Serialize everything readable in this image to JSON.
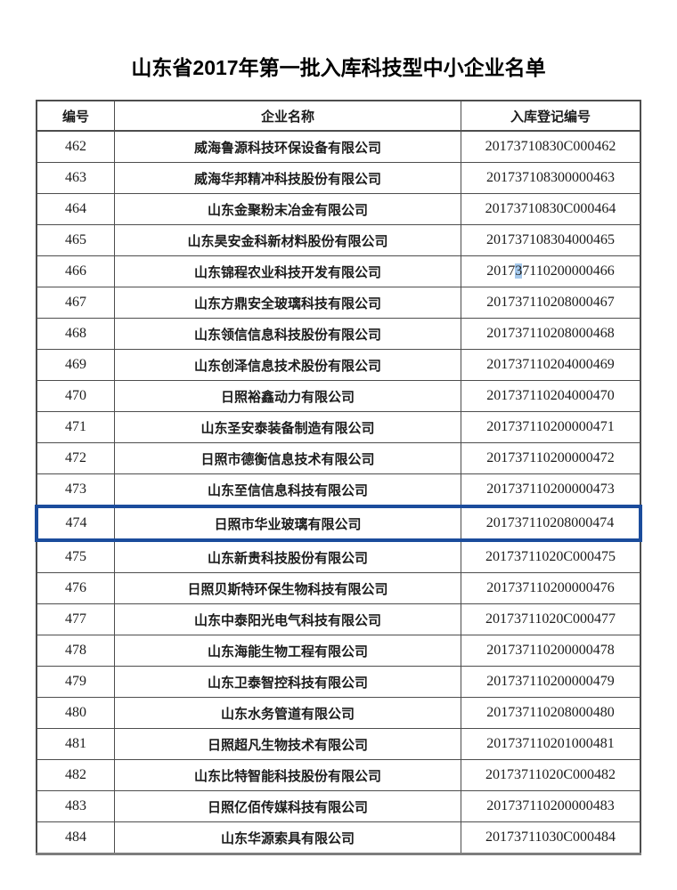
{
  "page": {
    "title": "山东省2017年第一批入库科技型中小企业名单"
  },
  "colors": {
    "selected_row_border": "#1b4c9c",
    "selected_digit_bg": "#a4c8ec",
    "grid_line": "#4d4d4d"
  },
  "table": {
    "headers": [
      "编号",
      "企业名称",
      "入库登记编号"
    ],
    "rows": [
      {
        "no": "462",
        "name": "威海鲁源科技环保设备有限公司",
        "reg": "20173710830C000462"
      },
      {
        "no": "463",
        "name": "威海华邦精冲科技股份有限公司",
        "reg": "201737108300000463"
      },
      {
        "no": "464",
        "name": "山东金聚粉末冶金有限公司",
        "reg": "20173710830C000464"
      },
      {
        "no": "465",
        "name": "山东昊安金科新材料股份有限公司",
        "reg": "201737108304000465"
      },
      {
        "no": "466",
        "name": "山东锦程农业科技开发有限公司",
        "reg": "201737110200000466",
        "reg_highlight_index": 4
      },
      {
        "no": "467",
        "name": "山东方鼎安全玻璃科技有限公司",
        "reg": "201737110208000467"
      },
      {
        "no": "468",
        "name": "山东领信信息科技股份有限公司",
        "reg": "201737110208000468"
      },
      {
        "no": "469",
        "name": "山东创泽信息技术股份有限公司",
        "reg": "201737110204000469"
      },
      {
        "no": "470",
        "name": "日照裕鑫动力有限公司",
        "reg": "201737110204000470"
      },
      {
        "no": "471",
        "name": "山东圣安泰装备制造有限公司",
        "reg": "201737110200000471"
      },
      {
        "no": "472",
        "name": "日照市德衡信息技术有限公司",
        "reg": "201737110200000472"
      },
      {
        "no": "473",
        "name": "山东至信信息科技有限公司",
        "reg": "201737110200000473"
      },
      {
        "no": "474",
        "name": "日照市华业玻璃有限公司",
        "reg": "201737110208000474",
        "selected": true
      },
      {
        "no": "475",
        "name": "山东新贵科技股份有限公司",
        "reg": "20173711020C000475"
      },
      {
        "no": "476",
        "name": "日照贝斯特环保生物科技有限公司",
        "reg": "201737110200000476"
      },
      {
        "no": "477",
        "name": "山东中泰阳光电气科技有限公司",
        "reg": "20173711020C000477"
      },
      {
        "no": "478",
        "name": "山东海能生物工程有限公司",
        "reg": "201737110200000478"
      },
      {
        "no": "479",
        "name": "山东卫泰智控科技有限公司",
        "reg": "201737110200000479"
      },
      {
        "no": "480",
        "name": "山东水务管道有限公司",
        "reg": "201737110208000480"
      },
      {
        "no": "481",
        "name": "日照超凡生物技术有限公司",
        "reg": "201737110201000481"
      },
      {
        "no": "482",
        "name": "山东比特智能科技股份有限公司",
        "reg": "20173711020C000482"
      },
      {
        "no": "483",
        "name": "日照亿佰传媒科技有限公司",
        "reg": "201737110200000483"
      },
      {
        "no": "484",
        "name": "山东华源索具有限公司",
        "reg": "20173711030C000484"
      }
    ]
  }
}
